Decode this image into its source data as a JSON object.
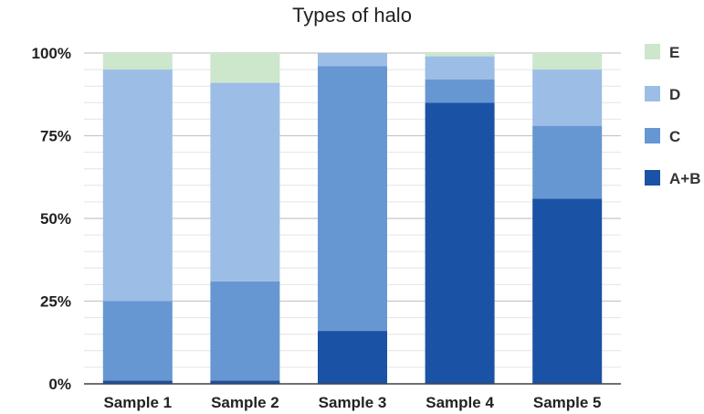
{
  "chart_data": {
    "type": "bar",
    "stacked": true,
    "title": "Types of halo",
    "categories": [
      "Sample 1",
      "Sample 2",
      "Sample 3",
      "Sample 4",
      "Sample 5"
    ],
    "series": [
      {
        "name": "A+B",
        "values": [
          1,
          1,
          16,
          85,
          56
        ],
        "color": "#1a52a5"
      },
      {
        "name": "C",
        "values": [
          24,
          30,
          80,
          7,
          22
        ],
        "color": "#6797d2"
      },
      {
        "name": "D",
        "values": [
          70,
          60,
          4,
          7,
          17
        ],
        "color": "#9cbde6"
      },
      {
        "name": "E",
        "values": [
          5,
          9,
          0,
          1,
          5
        ],
        "color": "#cce7cc"
      }
    ],
    "ylim": [
      0,
      100
    ],
    "yticks": [
      "0%",
      "25%",
      "50%",
      "75%",
      "100%"
    ],
    "xlabel": "",
    "ylabel": "",
    "grid": true,
    "legend_position": "right",
    "legend_order": [
      "E",
      "D",
      "C",
      "A+B"
    ]
  }
}
